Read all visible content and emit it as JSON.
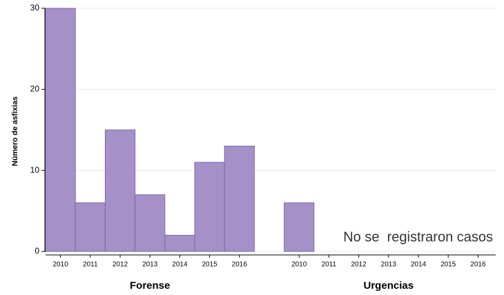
{
  "chart_data": {
    "type": "bar",
    "ylabel": "Número de asfixias",
    "ylim": [
      0,
      30
    ],
    "yticks": [
      0,
      10,
      20,
      30
    ],
    "grid": true,
    "color": "#a590c8",
    "groups": [
      {
        "name": "Forense",
        "categories": [
          "2010",
          "2011",
          "2012",
          "2013",
          "2014",
          "2015",
          "2016"
        ],
        "values": [
          30,
          6,
          15,
          7,
          2,
          11,
          13
        ]
      },
      {
        "name": "Urgencias",
        "categories": [
          "2010",
          "2011",
          "2012",
          "2013",
          "2014",
          "2015",
          "2016"
        ],
        "values": [
          6,
          null,
          null,
          null,
          null,
          null,
          null
        ]
      }
    ],
    "annotation": "No se  registraron casos"
  }
}
